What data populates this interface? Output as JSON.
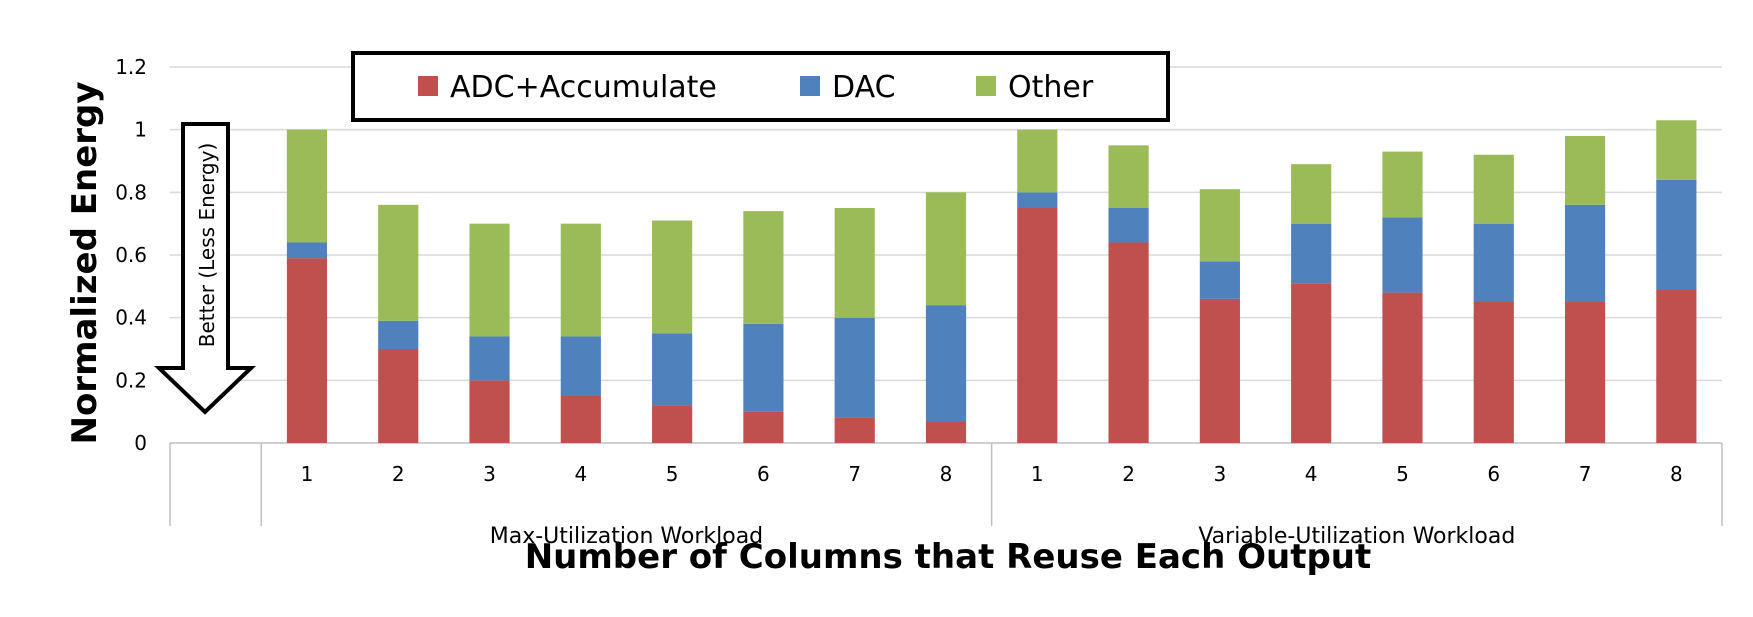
{
  "chart_data": {
    "type": "bar",
    "stacked": true,
    "ylabel": "Normalized Energy",
    "xlabel": "Number of Columns that Reuse Each Output",
    "ylim": [
      0,
      1.2
    ],
    "yticks": [
      "0",
      "0.2",
      "0.4",
      "0.6",
      "0.8",
      "1",
      "1.2"
    ],
    "grid": true,
    "legend_position": "top",
    "groups": [
      {
        "name": "Max-Utilization Workload",
        "categories": [
          "1",
          "2",
          "3",
          "4",
          "5",
          "6",
          "7",
          "8"
        ]
      },
      {
        "name": "Variable-Utilization Workload",
        "categories": [
          "1",
          "2",
          "3",
          "4",
          "5",
          "6",
          "7",
          "8"
        ]
      }
    ],
    "series": [
      {
        "name": "ADC+Accumulate",
        "color": "#c0504d",
        "values": [
          0.59,
          0.3,
          0.2,
          0.15,
          0.12,
          0.1,
          0.08,
          0.07,
          0.75,
          0.64,
          0.46,
          0.51,
          0.48,
          0.45,
          0.45,
          0.49
        ]
      },
      {
        "name": "DAC",
        "color": "#4f81bd",
        "values": [
          0.05,
          0.09,
          0.14,
          0.19,
          0.23,
          0.28,
          0.32,
          0.37,
          0.05,
          0.11,
          0.12,
          0.19,
          0.24,
          0.25,
          0.31,
          0.35
        ]
      },
      {
        "name": "Other",
        "color": "#9bbb59",
        "values": [
          0.36,
          0.37,
          0.36,
          0.36,
          0.36,
          0.36,
          0.35,
          0.36,
          0.2,
          0.2,
          0.23,
          0.19,
          0.21,
          0.22,
          0.22,
          0.19
        ]
      }
    ],
    "annotation": "Better (Less Energy)"
  }
}
